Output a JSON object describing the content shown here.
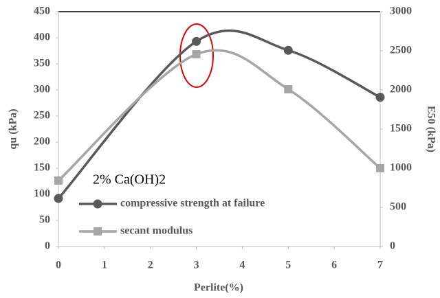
{
  "chart_data": {
    "type": "line",
    "x_label": "Perlite(%)",
    "y_label": "qu (kPa)",
    "y2_label": "E50 (kPa)",
    "annotation": "2% Ca(OH)2",
    "x": [
      0,
      3,
      5,
      7
    ],
    "series": [
      {
        "name": "compressive strength at failure",
        "color": "#595959",
        "marker": "circle",
        "values": [
          92,
          393,
          376,
          286
        ]
      },
      {
        "name": "secant modulus",
        "color": "#a6a6a6",
        "marker": "square",
        "axis": "y2",
        "values": [
          842,
          2456,
          2009,
          1000
        ]
      }
    ],
    "xlim": [
      0,
      7
    ],
    "xticks": [
      0,
      1,
      2,
      3,
      4,
      5,
      6,
      7
    ],
    "ylim": [
      0,
      450
    ],
    "yticks": [
      0,
      50,
      100,
      150,
      200,
      250,
      300,
      350,
      400,
      450
    ],
    "y2lim": [
      0,
      3000
    ],
    "y2ticks": [
      0,
      500,
      1000,
      1500,
      2000,
      2500,
      3000
    ],
    "legend": "lower left"
  }
}
